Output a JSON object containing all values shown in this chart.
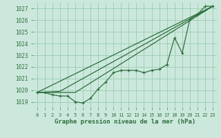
{
  "title": "Graphe pression niveau de la mer (hPa)",
  "background_color": "#cce8dc",
  "plot_bg_color": "#cce8dc",
  "grid_color": "#99ccb3",
  "line_color": "#2d6e3e",
  "xlim": [
    -0.5,
    23.5
  ],
  "ylim": [
    1018.5,
    1027.5
  ],
  "yticks": [
    1019,
    1020,
    1021,
    1022,
    1023,
    1024,
    1025,
    1026,
    1027
  ],
  "xticks": [
    0,
    1,
    2,
    3,
    4,
    5,
    6,
    7,
    8,
    9,
    10,
    11,
    12,
    13,
    14,
    15,
    16,
    17,
    18,
    19,
    20,
    21,
    22,
    23
  ],
  "x_hours": [
    0,
    1,
    2,
    3,
    4,
    5,
    6,
    7,
    8,
    9,
    10,
    11,
    12,
    13,
    14,
    15,
    16,
    17,
    18,
    19,
    20,
    21,
    22,
    23
  ],
  "line1": [
    1019.8,
    1019.8,
    1019.6,
    1019.5,
    1019.5,
    1019.0,
    1018.9,
    1019.3,
    1020.1,
    1020.7,
    1021.5,
    1021.7,
    1021.7,
    1021.7,
    1021.5,
    1021.7,
    1021.8,
    1022.2,
    1024.5,
    1023.2,
    1026.1,
    1026.5,
    1027.2,
    1027.2
  ],
  "line2_x": [
    0,
    23
  ],
  "line2_y": [
    1019.8,
    1027.2
  ],
  "line3_x": [
    0,
    5,
    23
  ],
  "line3_y": [
    1019.8,
    1019.8,
    1027.2
  ],
  "line4_x": [
    0,
    3,
    23
  ],
  "line4_y": [
    1019.8,
    1019.9,
    1027.2
  ],
  "xlabel_fontsize": 6.5,
  "ytick_fontsize": 5.5,
  "xtick_fontsize": 5.0
}
